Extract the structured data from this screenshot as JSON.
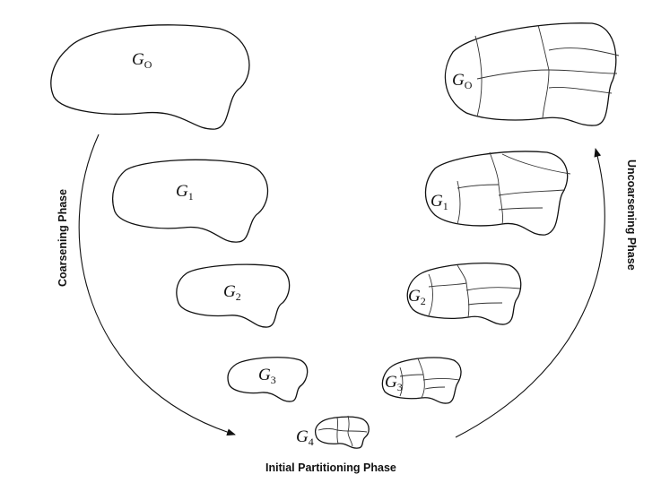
{
  "phases": {
    "coarsening": "Coarsening Phase",
    "uncoarsening": "Uncoarsening Phase",
    "initial": "Initial Partitioning Phase"
  },
  "graphs": {
    "g0_left": {
      "base": "G",
      "sub": "O"
    },
    "g1_left": {
      "base": "G",
      "sub": "1"
    },
    "g2_left": {
      "base": "G",
      "sub": "2"
    },
    "g3_left": {
      "base": "G",
      "sub": "3"
    },
    "g4": {
      "base": "G",
      "sub": "4"
    },
    "g0_right": {
      "base": "G",
      "sub": "O"
    },
    "g1_right": {
      "base": "G",
      "sub": "1"
    },
    "g2_right": {
      "base": "G",
      "sub": "2"
    },
    "g3_right": {
      "base": "G",
      "sub": "3"
    }
  }
}
